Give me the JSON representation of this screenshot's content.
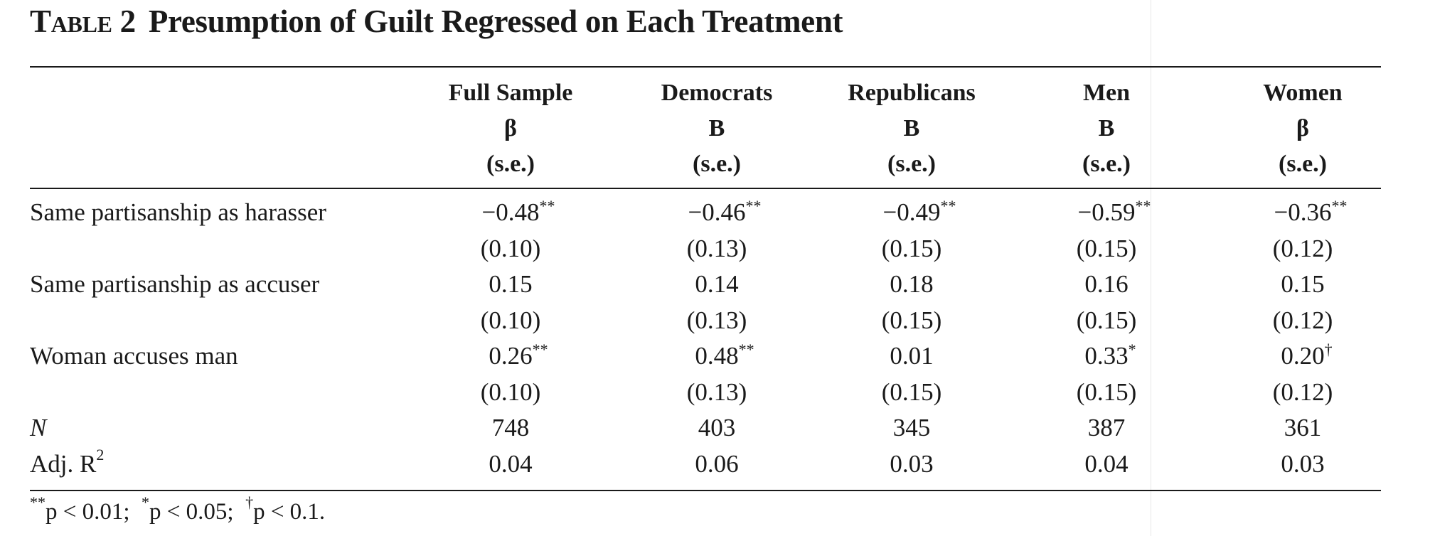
{
  "table": {
    "label": "Table 2",
    "title": "Presumption of Guilt Regressed on Each Treatment",
    "columns": [
      {
        "name": "Full Sample",
        "coef_symbol": "β",
        "se_label": "(s.e.)"
      },
      {
        "name": "Democrats",
        "coef_symbol": "B",
        "se_label": "(s.e.)"
      },
      {
        "name": "Republicans",
        "coef_symbol": "B",
        "se_label": "(s.e.)"
      },
      {
        "name": "Men",
        "coef_symbol": "B",
        "se_label": "(s.e.)"
      },
      {
        "name": "Women",
        "coef_symbol": "β",
        "se_label": "(s.e.)"
      }
    ],
    "rows": [
      {
        "label": "Same partisanship as harasser",
        "coefs": [
          {
            "value": "−0.48",
            "stars": "**"
          },
          {
            "value": "−0.46",
            "stars": "**"
          },
          {
            "value": "−0.49",
            "stars": "**"
          },
          {
            "value": "−0.59",
            "stars": "**"
          },
          {
            "value": "−0.36",
            "stars": "**"
          }
        ],
        "ses": [
          "(0.10)",
          "(0.13)",
          "(0.15)",
          "(0.15)",
          "(0.12)"
        ]
      },
      {
        "label": "Same partisanship as accuser",
        "coefs": [
          {
            "value": "0.15",
            "stars": ""
          },
          {
            "value": "0.14",
            "stars": ""
          },
          {
            "value": "0.18",
            "stars": ""
          },
          {
            "value": "0.16",
            "stars": ""
          },
          {
            "value": "0.15",
            "stars": ""
          }
        ],
        "ses": [
          "(0.10)",
          "(0.13)",
          "(0.15)",
          "(0.15)",
          "(0.12)"
        ]
      },
      {
        "label": "Woman accuses man",
        "coefs": [
          {
            "value": "0.26",
            "stars": "**"
          },
          {
            "value": "0.48",
            "stars": "**"
          },
          {
            "value": "0.01",
            "stars": ""
          },
          {
            "value": "0.33",
            "stars": "*"
          },
          {
            "value": "0.20",
            "stars": "†"
          }
        ],
        "ses": [
          "(0.10)",
          "(0.13)",
          "(0.15)",
          "(0.15)",
          "(0.12)"
        ]
      }
    ],
    "stats": [
      {
        "label": "N",
        "italic": true,
        "values": [
          "748",
          "403",
          "345",
          "387",
          "361"
        ]
      },
      {
        "label": "Adj. R",
        "sup": "2",
        "italic": false,
        "values": [
          "0.04",
          "0.06",
          "0.03",
          "0.04",
          "0.03"
        ]
      }
    ],
    "footnote": [
      {
        "sym": "**",
        "text": "p < 0.01;"
      },
      {
        "sym": "*",
        "text": "p < 0.05;"
      },
      {
        "sym": "†",
        "text": "p < 0.1."
      }
    ]
  }
}
